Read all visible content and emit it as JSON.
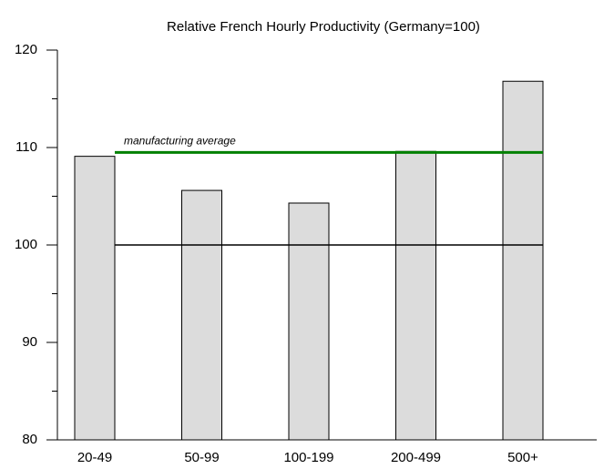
{
  "chart_data": {
    "type": "bar",
    "title": "Relative French Hourly Productivity (Germany=100)",
    "categories": [
      "20-49",
      "50-99",
      "100-199",
      "200-499",
      "500+"
    ],
    "values": [
      109.1,
      105.6,
      104.3,
      109.6,
      116.8
    ],
    "color": "#dcdcdc",
    "ylim": [
      80,
      120
    ],
    "yticks": [
      80,
      90,
      100,
      110,
      120
    ],
    "minor_yticks": [
      85,
      95,
      105,
      115
    ],
    "reference_lines": [
      {
        "value": 100,
        "color": "#000000"
      },
      {
        "value": 109.5,
        "label": "manufacturing average",
        "color": "#008000"
      }
    ]
  }
}
